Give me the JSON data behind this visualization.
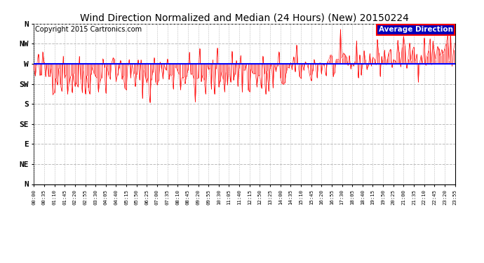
{
  "title": "Wind Direction Normalized and Median (24 Hours) (New) 20150224",
  "copyright": "Copyright 2015 Cartronics.com",
  "legend_label": "Average Direction",
  "legend_bg": "#0000bb",
  "legend_text_color": "#ffffff",
  "legend_edge": "#ff0000",
  "average_direction_value": 270,
  "ytick_labels": [
    "N",
    "NW",
    "W",
    "SW",
    "S",
    "SE",
    "E",
    "NE",
    "N"
  ],
  "ytick_values": [
    360,
    315,
    270,
    225,
    180,
    135,
    90,
    45,
    0
  ],
  "ylim": [
    0,
    360
  ],
  "bg_color": "#ffffff",
  "plot_bg_color": "#ffffff",
  "grid_color": "#bbbbbb",
  "line_color": "#ff0000",
  "avg_line_color": "#0000ff",
  "title_fontsize": 10,
  "copyright_fontsize": 7,
  "n_points": 288,
  "seed": 42,
  "xtick_step": 7
}
